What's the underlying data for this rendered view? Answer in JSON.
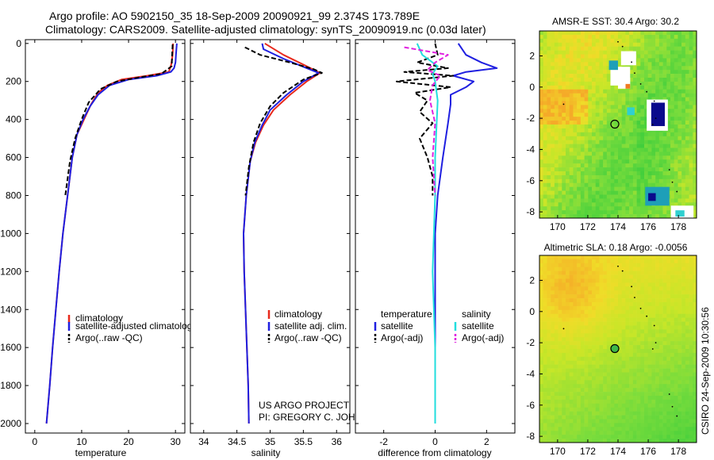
{
  "header": {
    "line1": "Argo profile: AO 5902150_35 18-Sep-2009 20090921_99 2.374S 173.789E",
    "line2": "Climatology: CARS2009. Satellite-adjusted climatology: synTS_20090919.nc (0.03d later)"
  },
  "footer": {
    "project": "US ARGO PROJECT",
    "pi": "PI: GREGORY C. JOHNSON",
    "timestamp": "CSIRO 24-Sep-2009 10:30:56"
  },
  "colors": {
    "red": "#e8291c",
    "blue": "#1f1fe0",
    "black": "#000000",
    "cyan": "#22dede",
    "magenta": "#e020e0"
  },
  "chart_data": [
    {
      "type": "line",
      "id": "temperature",
      "xlabel": "temperature",
      "ylabel": "",
      "xlim": [
        -2,
        32
      ],
      "ylim": [
        2050,
        0
      ],
      "xticks": [
        "0",
        "10",
        "20",
        "30"
      ],
      "xtick_values": [
        0,
        10,
        20,
        30
      ],
      "yticks": [
        "0",
        "200",
        "400",
        "600",
        "800",
        "1000",
        "1200",
        "1400",
        "1600",
        "1800",
        "2000"
      ],
      "ytick_values": [
        0,
        200,
        400,
        600,
        800,
        1000,
        1200,
        1400,
        1600,
        1800,
        2000
      ],
      "legend": [
        "climatology",
        "satellite-adjusted climatology",
        "Argo(..raw -QC)"
      ],
      "series": [
        {
          "name": "climatology",
          "color": "red",
          "dash": false,
          "points": [
            [
              29.5,
              0
            ],
            [
              29.4,
              60
            ],
            [
              29.1,
              110
            ],
            [
              28.6,
              150
            ],
            [
              24,
              170
            ],
            [
              18.5,
              190
            ],
            [
              15.5,
              220
            ],
            [
              13.5,
              260
            ],
            [
              12,
              320
            ],
            [
              10.5,
              400
            ],
            [
              9,
              480
            ],
            [
              8,
              600
            ],
            [
              7,
              800
            ],
            [
              6,
              1000
            ],
            [
              5.2,
              1200
            ],
            [
              4.5,
              1400
            ],
            [
              3.8,
              1600
            ],
            [
              3.2,
              1800
            ],
            [
              2.5,
              2000
            ]
          ]
        },
        {
          "name": "satellite-adjusted climatology",
          "color": "blue",
          "dash": false,
          "points": [
            [
              30.3,
              0
            ],
            [
              30.1,
              60
            ],
            [
              30,
              100
            ],
            [
              29.7,
              130
            ],
            [
              29,
              150
            ],
            [
              26,
              170
            ],
            [
              20,
              190
            ],
            [
              16,
              220
            ],
            [
              13.5,
              270
            ],
            [
              11.8,
              330
            ],
            [
              10.3,
              400
            ],
            [
              9,
              480
            ],
            [
              8,
              600
            ],
            [
              7,
              800
            ],
            [
              6,
              1000
            ],
            [
              5.2,
              1200
            ],
            [
              4.5,
              1400
            ],
            [
              3.8,
              1600
            ],
            [
              3.2,
              1800
            ],
            [
              2.5,
              2000
            ]
          ]
        },
        {
          "name": "Argo(..raw -QC)",
          "color": "black",
          "dash": true,
          "points": [
            [
              29.4,
              5
            ],
            [
              29.3,
              60
            ],
            [
              29.2,
              120
            ],
            [
              27,
              160
            ],
            [
              22,
              180
            ],
            [
              17.5,
              200
            ],
            [
              14,
              240
            ],
            [
              11.5,
              310
            ],
            [
              10,
              400
            ],
            [
              8.6,
              500
            ],
            [
              7.5,
              620
            ],
            [
              6.5,
              800
            ]
          ]
        }
      ]
    },
    {
      "type": "line",
      "id": "salinity",
      "xlabel": "salinity",
      "xlim": [
        33.8,
        36.2
      ],
      "ylim": [
        2050,
        0
      ],
      "xticks": [
        "34",
        "34.5",
        "35",
        "35.5",
        "36"
      ],
      "xtick_values": [
        34,
        34.5,
        35,
        35.5,
        36
      ],
      "legend": [
        "climatology",
        "satellite adj. clim.",
        "Argo(..raw -QC)"
      ],
      "series": [
        {
          "name": "climatology",
          "color": "red",
          "dash": false,
          "points": [
            [
              34.92,
              0
            ],
            [
              35.2,
              60
            ],
            [
              35.55,
              120
            ],
            [
              35.75,
              155
            ],
            [
              35.55,
              200
            ],
            [
              35.3,
              270
            ],
            [
              35.05,
              350
            ],
            [
              34.9,
              430
            ],
            [
              34.78,
              520
            ],
            [
              34.7,
              620
            ],
            [
              34.64,
              800
            ],
            [
              34.6,
              1000
            ],
            [
              34.61,
              1200
            ],
            [
              34.63,
              1400
            ],
            [
              34.65,
              1600
            ],
            [
              34.67,
              1800
            ],
            [
              34.68,
              2000
            ]
          ]
        },
        {
          "name": "satellite adj. clim.",
          "color": "blue",
          "dash": false,
          "points": [
            [
              34.88,
              0
            ],
            [
              34.9,
              30
            ],
            [
              35.2,
              80
            ],
            [
              35.55,
              130
            ],
            [
              35.73,
              155
            ],
            [
              35.5,
              200
            ],
            [
              35.25,
              270
            ],
            [
              35.0,
              350
            ],
            [
              34.88,
              430
            ],
            [
              34.77,
              520
            ],
            [
              34.7,
              620
            ],
            [
              34.64,
              800
            ],
            [
              34.6,
              1000
            ],
            [
              34.61,
              1200
            ],
            [
              34.63,
              1400
            ],
            [
              34.65,
              1600
            ],
            [
              34.67,
              1800
            ],
            [
              34.68,
              2000
            ]
          ]
        },
        {
          "name": "Argo(..raw -QC)",
          "color": "black",
          "dash": true,
          "points": [
            [
              34.62,
              20
            ],
            [
              34.85,
              60
            ],
            [
              35.3,
              100
            ],
            [
              35.65,
              135
            ],
            [
              35.78,
              155
            ],
            [
              35.5,
              190
            ],
            [
              35.2,
              260
            ],
            [
              35.0,
              330
            ],
            [
              34.85,
              420
            ],
            [
              34.75,
              520
            ],
            [
              34.68,
              650
            ],
            [
              34.63,
              800
            ]
          ]
        }
      ]
    },
    {
      "type": "line",
      "id": "difference",
      "xlabel": "difference from climatology",
      "xlim": [
        -3.1,
        3.1
      ],
      "ylim": [
        2050,
        0
      ],
      "xticks": [
        "-2",
        "0",
        "2"
      ],
      "xtick_values": [
        -2,
        0,
        2
      ],
      "legend_temperature": [
        "temperature",
        "satellite",
        "Argo(-adj)"
      ],
      "legend_salinity": [
        "salinity",
        "satellite",
        "Argo(-adj)"
      ],
      "series": [
        {
          "name": "temperature satellite",
          "color": "blue",
          "dash": false,
          "points": [
            [
              0.9,
              0
            ],
            [
              1.2,
              60
            ],
            [
              1.8,
              100
            ],
            [
              2.4,
              130
            ],
            [
              1.2,
              150
            ],
            [
              0.7,
              170
            ],
            [
              1.5,
              200
            ],
            [
              1.2,
              230
            ],
            [
              0.6,
              270
            ],
            [
              0.6,
              320
            ],
            [
              0.5,
              420
            ],
            [
              0.3,
              600
            ],
            [
              0.1,
              800
            ],
            [
              0,
              1000
            ],
            [
              0,
              1200
            ],
            [
              0,
              1400
            ],
            [
              0,
              1600
            ],
            [
              0,
              1800
            ],
            [
              0,
              2000
            ]
          ]
        },
        {
          "name": "temperature Argo(-adj)",
          "color": "black",
          "dash": true,
          "points": [
            [
              0,
              0
            ],
            [
              0.1,
              60
            ],
            [
              -0.7,
              100
            ],
            [
              0.5,
              130
            ],
            [
              -1.2,
              150
            ],
            [
              0.7,
              170
            ],
            [
              -1.5,
              200
            ],
            [
              0.6,
              230
            ],
            [
              -0.8,
              260
            ],
            [
              -0.3,
              300
            ],
            [
              -0.6,
              360
            ],
            [
              -0.1,
              420
            ],
            [
              -0.6,
              500
            ],
            [
              -0.3,
              600
            ],
            [
              -0.1,
              700
            ],
            [
              -0.1,
              800
            ]
          ]
        },
        {
          "name": "salinity satellite",
          "color": "cyan",
          "dash": false,
          "points": [
            [
              -0.7,
              0
            ],
            [
              -0.5,
              60
            ],
            [
              0.1,
              120
            ],
            [
              -0.1,
              160
            ],
            [
              0,
              200
            ],
            [
              0.1,
              300
            ],
            [
              0,
              600
            ],
            [
              0,
              800
            ],
            [
              -0.05,
              1000
            ],
            [
              -0.1,
              1200
            ],
            [
              -0.05,
              1400
            ],
            [
              0,
              1600
            ],
            [
              0,
              1800
            ],
            [
              0,
              2000
            ]
          ]
        },
        {
          "name": "salinity Argo(-adj)",
          "color": "magenta",
          "dash": true,
          "points": [
            [
              -1.2,
              20
            ],
            [
              0.5,
              60
            ],
            [
              0,
              100
            ],
            [
              -0.3,
              140
            ],
            [
              0.2,
              170
            ],
            [
              -0.1,
              220
            ],
            [
              -0.2,
              300
            ],
            [
              0,
              420
            ],
            [
              -0.1,
              600
            ],
            [
              0,
              800
            ]
          ]
        }
      ]
    },
    {
      "type": "heatmap",
      "id": "sst_map",
      "title": "AMSR-E SST: 30.4 Argo: 30.2",
      "xlim": [
        168.8,
        179.2
      ],
      "ylim": [
        -8.4,
        3.6
      ],
      "xticks": [
        "170",
        "172",
        "174",
        "176",
        "178"
      ],
      "xtick_values": [
        170,
        172,
        174,
        176,
        178
      ],
      "yticks": [
        "2",
        "0",
        "-2",
        "-4",
        "-6",
        "-8"
      ],
      "ytick_values": [
        2,
        0,
        -2,
        -4,
        -6,
        -8
      ],
      "marker": {
        "lon": 173.789,
        "lat": -2.374
      }
    },
    {
      "type": "heatmap",
      "id": "sla_map",
      "title": "Altimetric SLA: 0.18 Argo: -0.0056",
      "xlim": [
        168.8,
        179.2
      ],
      "ylim": [
        -8.4,
        3.6
      ],
      "xticks": [
        "170",
        "172",
        "174",
        "176",
        "178"
      ],
      "xtick_values": [
        170,
        172,
        174,
        176,
        178
      ],
      "yticks": [
        "2",
        "0",
        "-2",
        "-4",
        "-6",
        "-8"
      ],
      "ytick_values": [
        2,
        0,
        -2,
        -4,
        -6,
        -8
      ],
      "marker": {
        "lon": 173.789,
        "lat": -2.374
      }
    }
  ]
}
